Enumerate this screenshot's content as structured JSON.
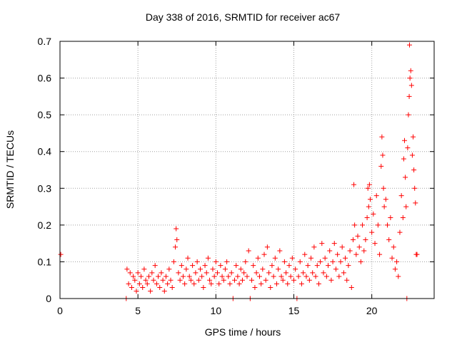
{
  "chart_data": {
    "type": "scatter",
    "title": "Day 338 of 2016, SRMTID for receiver ac67",
    "xlabel": "GPS time / hours",
    "ylabel": "SRMTID / TECUs",
    "xlim": [
      0,
      24
    ],
    "ylim": [
      0,
      0.7
    ],
    "x_ticks": [
      "0",
      "5",
      "10",
      "15",
      "20"
    ],
    "y_ticks": [
      "0",
      "0.1",
      "0.2",
      "0.3",
      "0.4",
      "0.5",
      "0.6",
      "0.7"
    ],
    "grid": true,
    "marker": "plus",
    "series": [
      {
        "name": "SRMTID",
        "color": "#ff0000",
        "points": [
          [
            0.05,
            0.12
          ],
          [
            4.25,
            0.0
          ],
          [
            4.3,
            0.08
          ],
          [
            4.4,
            0.04
          ],
          [
            4.5,
            0.07
          ],
          [
            4.6,
            0.03
          ],
          [
            4.7,
            0.06
          ],
          [
            4.8,
            0.05
          ],
          [
            4.9,
            0.02
          ],
          [
            5.0,
            0.07
          ],
          [
            5.1,
            0.04
          ],
          [
            5.2,
            0.06
          ],
          [
            5.3,
            0.03
          ],
          [
            5.4,
            0.08
          ],
          [
            5.5,
            0.05
          ],
          [
            5.6,
            0.04
          ],
          [
            5.7,
            0.06
          ],
          [
            5.8,
            0.02
          ],
          [
            5.9,
            0.07
          ],
          [
            6.0,
            0.05
          ],
          [
            6.1,
            0.09
          ],
          [
            6.2,
            0.04
          ],
          [
            6.3,
            0.06
          ],
          [
            6.4,
            0.03
          ],
          [
            6.5,
            0.07
          ],
          [
            6.6,
            0.05
          ],
          [
            6.7,
            0.02
          ],
          [
            6.8,
            0.06
          ],
          [
            6.9,
            0.04
          ],
          [
            7.0,
            0.08
          ],
          [
            7.1,
            0.05
          ],
          [
            7.2,
            0.03
          ],
          [
            7.3,
            0.1
          ],
          [
            7.4,
            0.14
          ],
          [
            7.45,
            0.19
          ],
          [
            7.5,
            0.16
          ],
          [
            7.6,
            0.07
          ],
          [
            7.7,
            0.05
          ],
          [
            7.8,
            0.09
          ],
          [
            7.9,
            0.06
          ],
          [
            8.0,
            0.04
          ],
          [
            8.1,
            0.08
          ],
          [
            8.2,
            0.11
          ],
          [
            8.3,
            0.06
          ],
          [
            8.4,
            0.05
          ],
          [
            8.5,
            0.09
          ],
          [
            8.6,
            0.04
          ],
          [
            8.7,
            0.07
          ],
          [
            8.8,
            0.1
          ],
          [
            8.9,
            0.05
          ],
          [
            9.0,
            0.08
          ],
          [
            9.1,
            0.06
          ],
          [
            9.2,
            0.03
          ],
          [
            9.3,
            0.09
          ],
          [
            9.4,
            0.07
          ],
          [
            9.5,
            0.11
          ],
          [
            9.6,
            0.05
          ],
          [
            9.7,
            0.04
          ],
          [
            9.8,
            0.08
          ],
          [
            9.9,
            0.06
          ],
          [
            10.0,
            0.1
          ],
          [
            10.1,
            0.07
          ],
          [
            10.2,
            0.04
          ],
          [
            10.3,
            0.09
          ],
          [
            10.4,
            0.06
          ],
          [
            10.5,
            0.05
          ],
          [
            10.6,
            0.08
          ],
          [
            10.7,
            0.1
          ],
          [
            10.8,
            0.06
          ],
          [
            10.9,
            0.04
          ],
          [
            11.0,
            0.07
          ],
          [
            11.1,
            0.0
          ],
          [
            11.2,
            0.05
          ],
          [
            11.3,
            0.09
          ],
          [
            11.4,
            0.06
          ],
          [
            11.5,
            0.04
          ],
          [
            11.6,
            0.08
          ],
          [
            11.7,
            0.05
          ],
          [
            11.8,
            0.07
          ],
          [
            11.9,
            0.1
          ],
          [
            12.0,
            0.06
          ],
          [
            12.1,
            0.13
          ],
          [
            12.2,
            0.0
          ],
          [
            12.3,
            0.05
          ],
          [
            12.4,
            0.09
          ],
          [
            12.5,
            0.03
          ],
          [
            12.6,
            0.07
          ],
          [
            12.7,
            0.11
          ],
          [
            12.8,
            0.06
          ],
          [
            12.9,
            0.04
          ],
          [
            13.0,
            0.08
          ],
          [
            13.1,
            0.12
          ],
          [
            13.2,
            0.05
          ],
          [
            13.3,
            0.14
          ],
          [
            13.4,
            0.07
          ],
          [
            13.5,
            0.03
          ],
          [
            13.6,
            0.09
          ],
          [
            13.7,
            0.06
          ],
          [
            13.8,
            0.11
          ],
          [
            13.9,
            0.04
          ],
          [
            14.0,
            0.08
          ],
          [
            14.1,
            0.13
          ],
          [
            14.2,
            0.06
          ],
          [
            14.3,
            0.05
          ],
          [
            14.4,
            0.1
          ],
          [
            14.5,
            0.07
          ],
          [
            14.6,
            0.04
          ],
          [
            14.7,
            0.09
          ],
          [
            14.8,
            0.06
          ],
          [
            14.9,
            0.11
          ],
          [
            15.0,
            0.05
          ],
          [
            15.1,
            0.08
          ],
          [
            15.2,
            0.0
          ],
          [
            15.3,
            0.06
          ],
          [
            15.4,
            0.1
          ],
          [
            15.5,
            0.04
          ],
          [
            15.6,
            0.07
          ],
          [
            15.7,
            0.12
          ],
          [
            15.8,
            0.06
          ],
          [
            15.9,
            0.09
          ],
          [
            16.0,
            0.05
          ],
          [
            16.1,
            0.11
          ],
          [
            16.2,
            0.07
          ],
          [
            16.3,
            0.14
          ],
          [
            16.4,
            0.06
          ],
          [
            16.5,
            0.09
          ],
          [
            16.6,
            0.04
          ],
          [
            16.7,
            0.1
          ],
          [
            16.8,
            0.15
          ],
          [
            16.9,
            0.07
          ],
          [
            17.0,
            0.11
          ],
          [
            17.1,
            0.06
          ],
          [
            17.2,
            0.09
          ],
          [
            17.3,
            0.13
          ],
          [
            17.4,
            0.05
          ],
          [
            17.5,
            0.1
          ],
          [
            17.6,
            0.15
          ],
          [
            17.7,
            0.08
          ],
          [
            17.8,
            0.12
          ],
          [
            17.9,
            0.06
          ],
          [
            18.0,
            0.1
          ],
          [
            18.1,
            0.14
          ],
          [
            18.2,
            0.07
          ],
          [
            18.3,
            0.11
          ],
          [
            18.4,
            0.05
          ],
          [
            18.5,
            0.09
          ],
          [
            18.6,
            0.13
          ],
          [
            18.7,
            0.03
          ],
          [
            18.8,
            0.16
          ],
          [
            18.85,
            0.31
          ],
          [
            18.9,
            0.2
          ],
          [
            19.0,
            0.12
          ],
          [
            19.1,
            0.17
          ],
          [
            19.2,
            0.14
          ],
          [
            19.3,
            0.1
          ],
          [
            19.4,
            0.2
          ],
          [
            19.5,
            0.13
          ],
          [
            19.6,
            0.16
          ],
          [
            19.7,
            0.22
          ],
          [
            19.75,
            0.3
          ],
          [
            19.8,
            0.25
          ],
          [
            19.85,
            0.31
          ],
          [
            19.9,
            0.27
          ],
          [
            20.0,
            0.18
          ],
          [
            20.1,
            0.23
          ],
          [
            20.2,
            0.15
          ],
          [
            20.3,
            0.28
          ],
          [
            20.4,
            0.2
          ],
          [
            20.5,
            0.12
          ],
          [
            20.6,
            0.36
          ],
          [
            20.65,
            0.44
          ],
          [
            20.7,
            0.39
          ],
          [
            20.75,
            0.3
          ],
          [
            20.8,
            0.25
          ],
          [
            20.9,
            0.27
          ],
          [
            21.0,
            0.2
          ],
          [
            21.1,
            0.16
          ],
          [
            21.2,
            0.22
          ],
          [
            21.3,
            0.11
          ],
          [
            21.4,
            0.14
          ],
          [
            21.5,
            0.08
          ],
          [
            21.6,
            0.1
          ],
          [
            21.7,
            0.06
          ],
          [
            21.8,
            0.18
          ],
          [
            21.9,
            0.28
          ],
          [
            22.0,
            0.22
          ],
          [
            22.05,
            0.38
          ],
          [
            22.1,
            0.43
          ],
          [
            22.15,
            0.33
          ],
          [
            22.2,
            0.25
          ],
          [
            22.25,
            0.0
          ],
          [
            22.3,
            0.41
          ],
          [
            22.35,
            0.5
          ],
          [
            22.4,
            0.55
          ],
          [
            22.42,
            0.69
          ],
          [
            22.45,
            0.6
          ],
          [
            22.5,
            0.62
          ],
          [
            22.55,
            0.58
          ],
          [
            22.6,
            0.39
          ],
          [
            22.65,
            0.44
          ],
          [
            22.7,
            0.35
          ],
          [
            22.75,
            0.3
          ],
          [
            22.8,
            0.26
          ],
          [
            22.85,
            0.12
          ],
          [
            22.9,
            0.12
          ]
        ]
      }
    ]
  }
}
